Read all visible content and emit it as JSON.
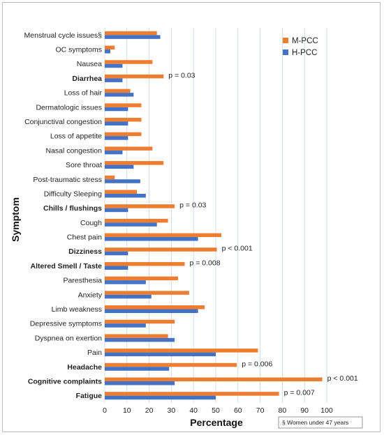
{
  "chart_data": {
    "type": "bar",
    "orientation": "horizontal",
    "categories": [
      "Menstrual cycle issues§",
      "OC symptoms",
      "Nausea",
      "Diarrhea",
      "Loss of hair",
      "Dermatologic issues",
      "Conjunctival congestion",
      "Loss of appetite",
      "Nasal congestion",
      "Sore throat",
      "Post-traumatic stress",
      "Difficulty Sleeping",
      "Chills / flushings",
      "Cough",
      "Chest pain",
      "Dizziness",
      "Altered Smell / Taste",
      "Paresthesia",
      "Anxiety",
      "Limb weakness",
      "Depressive symptoms",
      "Dyspnea on exertion",
      "Pain",
      "Headache",
      "Cognitive complaints",
      "Fatigue"
    ],
    "bold_categories": [
      "Diarrhea",
      "Chills / flushings",
      "Dizziness",
      "Altered Smell / Taste",
      "Headache",
      "Cognitive complaints",
      "Fatigue"
    ],
    "series": [
      {
        "name": "M-PCC",
        "color": "#ED7D31",
        "values": [
          23.5,
          4.5,
          21.5,
          26.5,
          11.5,
          16.5,
          16.5,
          16.5,
          21.5,
          26.5,
          4.5,
          14.5,
          31.5,
          28.5,
          52.5,
          50.5,
          36,
          33,
          38,
          45,
          31.5,
          28.5,
          69,
          59.5,
          98,
          78.5
        ]
      },
      {
        "name": "H-PCC",
        "color": "#4472C4",
        "values": [
          25,
          2.5,
          8,
          8,
          13,
          10.5,
          10.5,
          10.5,
          8,
          13,
          16,
          18.5,
          10.5,
          23.5,
          42,
          10.5,
          10.5,
          18.5,
          21,
          42,
          18.5,
          31.5,
          50,
          29,
          31.5,
          50
        ]
      }
    ],
    "annotations": [
      {
        "category": "Diarrhea",
        "text": "p = 0.03"
      },
      {
        "category": "Chills / flushings",
        "text": "p = 0.03"
      },
      {
        "category": "Dizziness",
        "text": "p < 0.001"
      },
      {
        "category": "Altered Smell / Taste",
        "text": "p = 0.008"
      },
      {
        "category": "Headache",
        "text": "p = 0.006"
      },
      {
        "category": "Cognitive complaints",
        "text": "p < 0.001"
      },
      {
        "category": "Fatigue",
        "text": "p = 0.007"
      }
    ],
    "xlabel": "Percentage",
    "ylabel": "Symptom",
    "xlim": [
      0,
      100
    ],
    "xticks": [
      0,
      10,
      20,
      30,
      40,
      50,
      60,
      70,
      80,
      90,
      100
    ],
    "grid": "vertical",
    "legend_position": "top-right",
    "footnote": "§ Women under 47 years"
  }
}
